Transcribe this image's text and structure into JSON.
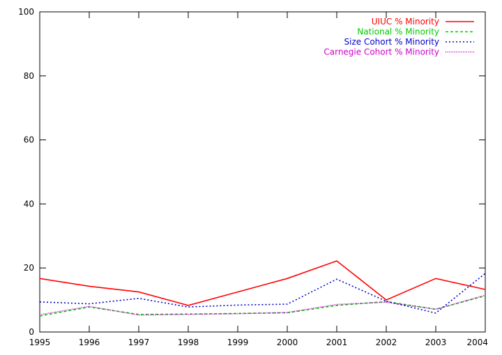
{
  "chart_data": {
    "type": "line",
    "x": [
      1995,
      1996,
      1997,
      1998,
      1999,
      2000,
      2001,
      2002,
      2003,
      2004
    ],
    "xlim": [
      1995,
      2004
    ],
    "ylim": [
      0,
      100
    ],
    "yticks": [
      0,
      20,
      40,
      60,
      80,
      100
    ],
    "xticks": [
      1995,
      1996,
      1997,
      1998,
      1999,
      2000,
      2001,
      2002,
      2003,
      2004
    ],
    "title": "",
    "xlabel": "",
    "ylabel": "",
    "grid": false,
    "legend_position": "top-right",
    "series": [
      {
        "name": "UIUC % Minority",
        "color": "#ff0000",
        "dash": "solid",
        "values": [
          16.7,
          14.3,
          12.5,
          8.3,
          12.5,
          16.7,
          22.2,
          10.0,
          16.7,
          13.3
        ]
      },
      {
        "name": "National % Minority",
        "color": "#00cc00",
        "dash": "dashed",
        "values": [
          5.0,
          7.8,
          5.5,
          5.6,
          5.8,
          6.0,
          8.3,
          9.5,
          7.1,
          11.3
        ]
      },
      {
        "name": "Size Cohort % Minority",
        "color": "#0000cc",
        "dash": "dotted",
        "values": [
          9.4,
          8.8,
          10.5,
          7.8,
          8.4,
          8.7,
          16.5,
          9.6,
          5.9,
          18.3
        ]
      },
      {
        "name": "Carnegie Cohort % Minority",
        "color": "#cc00cc",
        "dash": "dotted-fine",
        "values": [
          5.4,
          8.0,
          5.3,
          5.5,
          5.7,
          6.1,
          8.6,
          9.3,
          7.1,
          11.5
        ]
      }
    ]
  }
}
